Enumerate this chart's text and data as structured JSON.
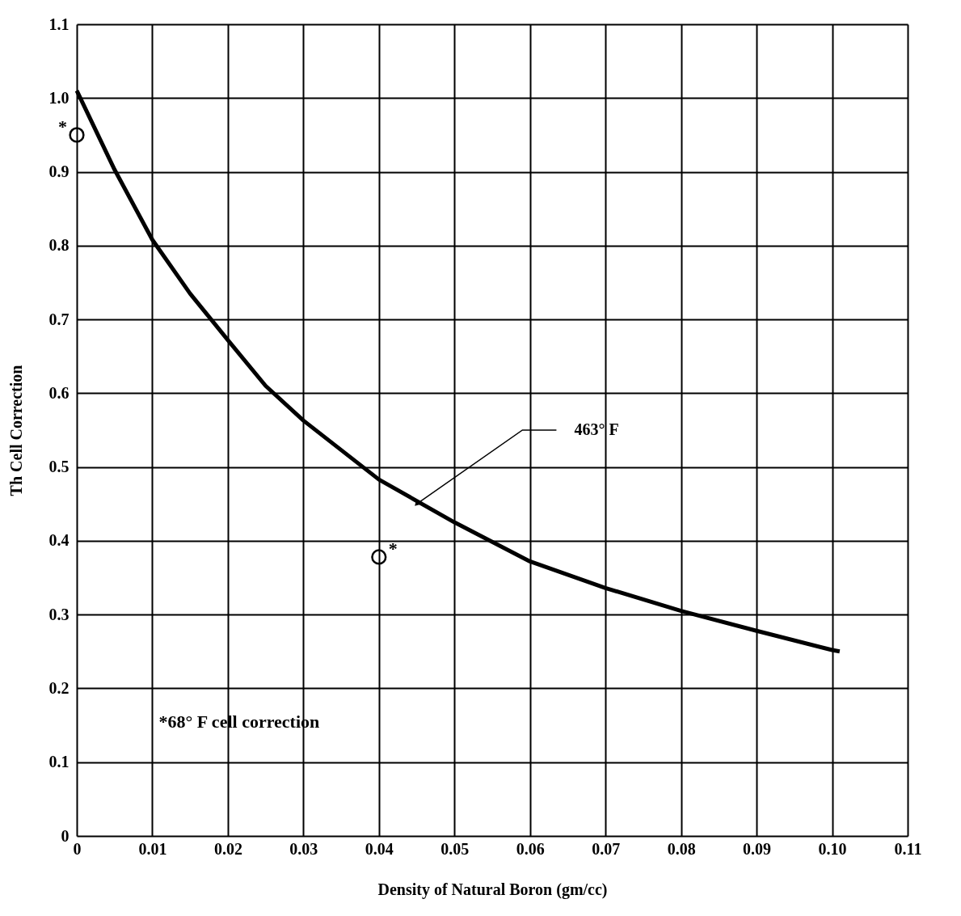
{
  "chart_data": {
    "type": "line",
    "xlabel": "Density of Natural Boron (gm/cc)",
    "ylabel": "Th Cell Correction",
    "xlim": [
      0,
      0.11
    ],
    "ylim": [
      0,
      1.1
    ],
    "xticks": [
      0,
      0.01,
      0.02,
      0.03,
      0.04,
      0.05,
      0.06,
      0.07,
      0.08,
      0.09,
      {
        "value": 0.1,
        "label": "0.10"
      },
      0.11
    ],
    "yticks": [
      0,
      0.1,
      0.2,
      0.3,
      0.4,
      0.5,
      0.6,
      0.7,
      0.8,
      0.9,
      {
        "value": 1,
        "label": "1.0"
      },
      1.1
    ],
    "grid": true,
    "series": [
      {
        "color": "#000000",
        "marker": "none",
        "line_style": "solid",
        "x": [
          0,
          0.005,
          0.01,
          0.015,
          0.02,
          0.025,
          0.03,
          0.04,
          0.05,
          0.06,
          0.07,
          0.08,
          0.09,
          0.1,
          0.101
        ],
        "values": [
          1.01,
          0.903,
          0.808,
          0.735,
          0.672,
          0.61,
          0.563,
          0.483,
          0.425,
          0.372,
          0.336,
          0.305,
          0.278,
          0.252,
          0.25
        ]
      },
      {
        "type": "scatter",
        "color": "#000000",
        "marker": "circle",
        "x": [
          0,
          0.04
        ],
        "values": [
          0.95,
          0.378
        ]
      }
    ],
    "annotations": [
      {
        "text": "463° F",
        "x": 0.045,
        "y": 0.45
      },
      {
        "text": "*",
        "x": 0,
        "y": 0.95
      },
      {
        "text": "*",
        "x": 0.04,
        "y": 0.378
      },
      "*68° F cell correction"
    ]
  }
}
